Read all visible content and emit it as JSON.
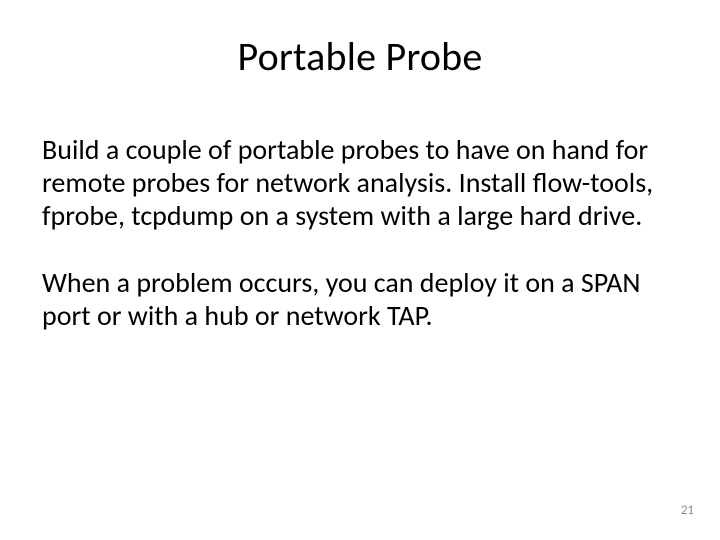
{
  "slide": {
    "title": "Portable Probe",
    "paragraph1": "Build a couple of portable probes to have on hand for remote probes for network analysis. Install flow-tools, fprobe, tcpdump on a system with a large hard drive.",
    "paragraph2": "When a problem occurs, you can deploy it on a SPAN port or with a hub or network TAP.",
    "pageNumber": "21"
  },
  "style": {
    "background_color": "#ffffff",
    "text_color": "#000000",
    "page_number_color": "#8b8b8b",
    "title_fontsize": 40,
    "body_fontsize": 28,
    "page_number_fontsize": 13,
    "font_family": "Calibri"
  }
}
